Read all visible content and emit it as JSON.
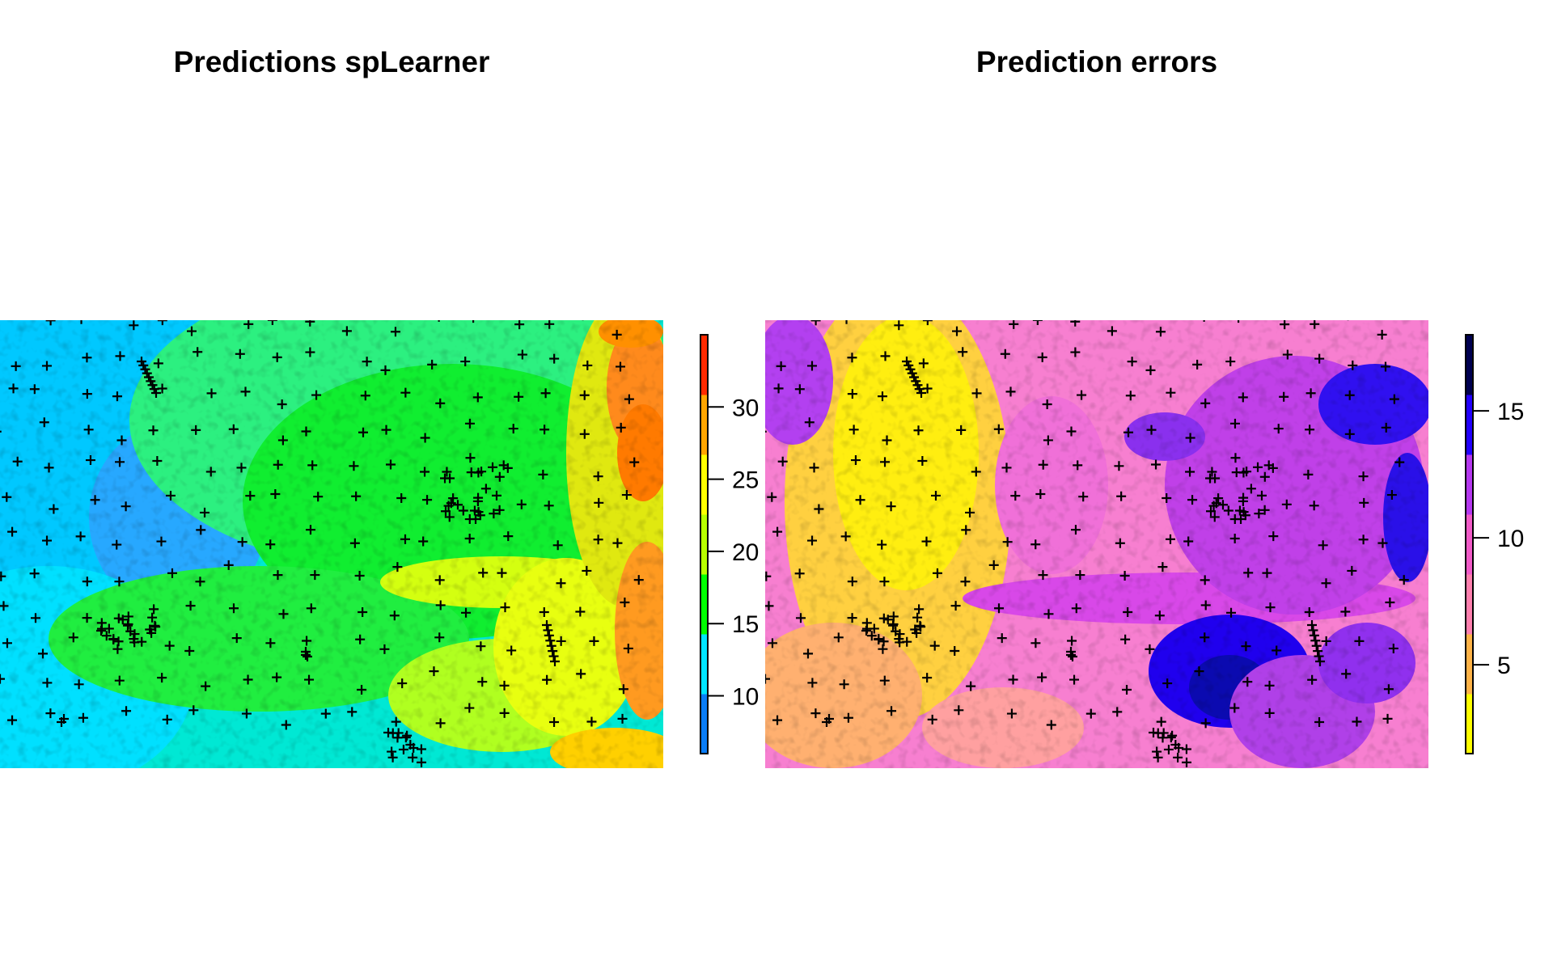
{
  "chart_data": [
    {
      "type": "heatmap",
      "title": "Predictions spLearner",
      "xlabel": "",
      "ylabel": "",
      "legend": "colorbar-right",
      "colorbar": {
        "range": [
          6,
          35
        ],
        "ticks": [
          10,
          15,
          20,
          25,
          30
        ],
        "tick_labels": [
          "10",
          "15",
          "20",
          "25",
          "30"
        ],
        "palette": [
          "#0a7df7",
          "#00e5ff",
          "#00ff00",
          "#b8ff00",
          "#ffff00",
          "#ffa500",
          "#ff2a00"
        ]
      },
      "field": "low values (cyan/blue) in the west and south-west, mid values (green) in the centre, high values (yellow to red) along the east and south-east",
      "points_marker": "+"
    },
    {
      "type": "heatmap",
      "title": "Prediction errors",
      "xlabel": "",
      "ylabel": "",
      "legend": "colorbar-right",
      "colorbar": {
        "range": [
          1.5,
          18
        ],
        "ticks": [
          5,
          10,
          15
        ],
        "tick_labels": [
          "5",
          "10",
          "15"
        ],
        "palette": [
          "#ffff00",
          "#ffb347",
          "#ff7fae",
          "#f25ac8",
          "#b537f0",
          "#2200ff",
          "#000050"
        ]
      },
      "field": "low errors (yellow) in the west-centre, moderate (pink/magenta) across most of the map, high errors (blue/navy) in the east and south-east",
      "points_marker": "+"
    }
  ]
}
